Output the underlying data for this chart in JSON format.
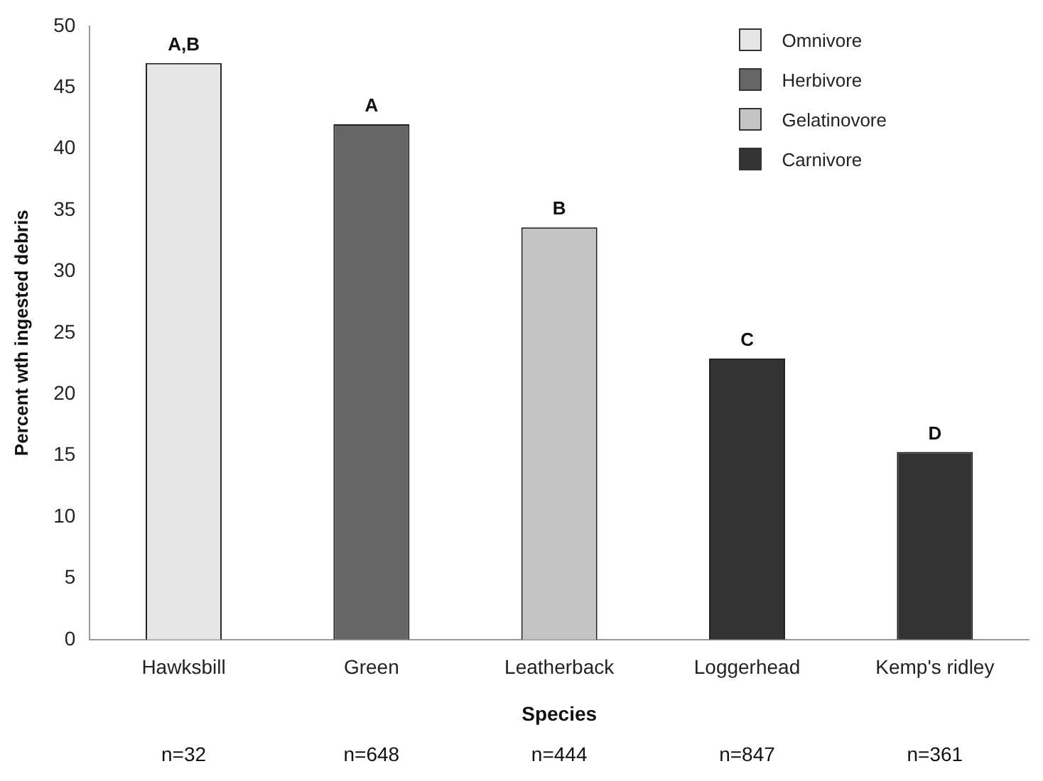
{
  "chart_data": {
    "type": "bar",
    "xlabel": "Species",
    "ylabel": "Percent wth ingested debris",
    "categories": [
      "Hawksbill",
      "Green",
      "Leatherback",
      "Loggerhead",
      "Kemp's ridley"
    ],
    "series": [
      {
        "name": "Omnivore",
        "color": "#e6e6e6",
        "values": [
          47,
          null,
          null,
          null,
          null
        ]
      },
      {
        "name": "Herbivore",
        "color": "#666666",
        "values": [
          null,
          42,
          null,
          null,
          null
        ]
      },
      {
        "name": "Gelatinovore",
        "color": "#c4c4c4",
        "values": [
          null,
          null,
          33.6,
          null,
          null
        ]
      },
      {
        "name": "Carnivore",
        "color": "#333333",
        "values": [
          null,
          null,
          null,
          22.9,
          15.3
        ]
      }
    ],
    "ylim": [
      0,
      50
    ],
    "yticks": [
      0,
      5,
      10,
      15,
      20,
      25,
      30,
      35,
      40,
      45,
      50
    ],
    "grid": false,
    "legend": "top right",
    "annotations": [
      {
        "text": "A,B",
        "x": "Hawksbill",
        "y": 47
      },
      {
        "text": "A",
        "x": "Green",
        "y": 42
      },
      {
        "text": "B",
        "x": "Leatherback",
        "y": 33.6
      },
      {
        "text": "C",
        "x": "Loggerhead",
        "y": 22.9
      },
      {
        "text": "D",
        "x": "Kemp's ridley",
        "y": 15.3
      },
      "n=32",
      "n=648",
      "n=444",
      "n=847",
      "n=361"
    ]
  }
}
